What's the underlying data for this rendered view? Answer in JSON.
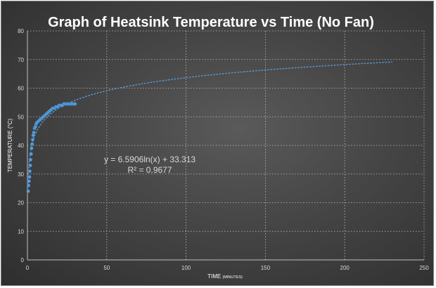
{
  "chart_data": {
    "type": "scatter",
    "title": "Graph of Heatsink Temperature vs Time (No Fan)",
    "xlabel": "TIME",
    "xlabel_unit": "(MINUTES)",
    "ylabel": "TEMPERATURE (°C)",
    "xlim": [
      0,
      250
    ],
    "ylim": [
      0,
      80
    ],
    "x_ticks": [
      0,
      50,
      100,
      150,
      200,
      250
    ],
    "y_ticks": [
      0,
      10,
      20,
      30,
      40,
      50,
      60,
      70,
      80
    ],
    "grid": true,
    "series": [
      {
        "color": "#5b9bd5",
        "x": [
          0.5,
          0.7,
          1,
          1.3,
          1.5,
          1.8,
          2,
          2.3,
          2.6,
          3,
          3.3,
          3.6,
          4,
          4.5,
          5,
          5.5,
          6,
          7,
          8,
          9,
          10,
          11,
          12,
          13,
          14,
          15,
          16,
          17,
          18,
          19,
          20,
          21,
          22,
          23,
          24,
          25,
          26,
          27,
          28,
          29,
          30
        ],
        "y": [
          24,
          26,
          27.5,
          29,
          31,
          33,
          35,
          37,
          39,
          40.5,
          42,
          43.5,
          44.5,
          46,
          46.5,
          47.5,
          48,
          48.5,
          49,
          49.5,
          50,
          50.5,
          51,
          51.5,
          52,
          52.5,
          53,
          53,
          53.5,
          53.5,
          54,
          54,
          54,
          54.5,
          54.5,
          54.5,
          54.5,
          54.5,
          54.5,
          54.5,
          54.5
        ]
      }
    ],
    "trendline": {
      "type": "logarithmic",
      "a": 6.5906,
      "b": 33.313,
      "x_range": [
        0.5,
        230
      ],
      "color": "#5b9bd5",
      "equation_label": "y = 6.5906ln(x) + 33.313",
      "r2_label": "R² = 0.9677"
    },
    "colors": {
      "background": "#3f3f3f",
      "text": "#ffffff",
      "gridline": "#bfbfbf"
    }
  }
}
